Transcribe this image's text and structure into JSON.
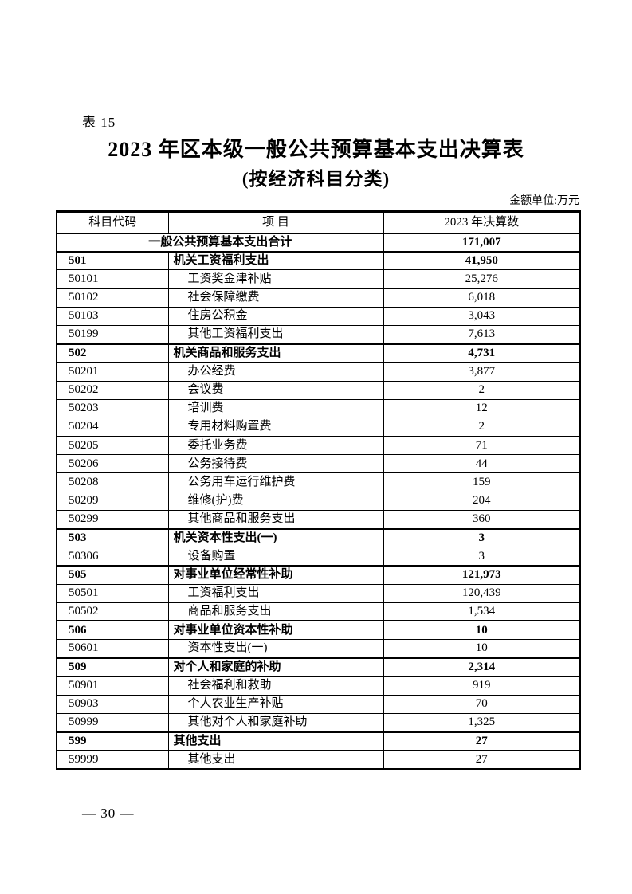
{
  "page": {
    "table_label": "表 15",
    "title": "2023 年区本级一般公共预算基本支出决算表",
    "subtitle": "(按经济科目分类)",
    "unit_note": "金额单位:万元",
    "page_number": "— 30 —"
  },
  "table": {
    "headers": [
      "科目代码",
      "项  目",
      "2023 年决算数"
    ],
    "total_row": {
      "label": "一般公共预算基本支出合计",
      "value": "171,007"
    },
    "rows": [
      {
        "code": "501",
        "item": "机关工资福利支出",
        "value": "41,950",
        "category": true
      },
      {
        "code": "50101",
        "item": "工资奖金津补贴",
        "value": "25,276",
        "category": false
      },
      {
        "code": "50102",
        "item": "社会保障缴费",
        "value": "6,018",
        "category": false
      },
      {
        "code": "50103",
        "item": "住房公积金",
        "value": "3,043",
        "category": false
      },
      {
        "code": "50199",
        "item": "其他工资福利支出",
        "value": "7,613",
        "category": false
      },
      {
        "code": "502",
        "item": "机关商品和服务支出",
        "value": "4,731",
        "category": true
      },
      {
        "code": "50201",
        "item": "办公经费",
        "value": "3,877",
        "category": false
      },
      {
        "code": "50202",
        "item": "会议费",
        "value": "2",
        "category": false
      },
      {
        "code": "50203",
        "item": "培训费",
        "value": "12",
        "category": false
      },
      {
        "code": "50204",
        "item": "专用材料购置费",
        "value": "2",
        "category": false
      },
      {
        "code": "50205",
        "item": "委托业务费",
        "value": "71",
        "category": false
      },
      {
        "code": "50206",
        "item": "公务接待费",
        "value": "44",
        "category": false
      },
      {
        "code": "50208",
        "item": "公务用车运行维护费",
        "value": "159",
        "category": false
      },
      {
        "code": "50209",
        "item": "维修(护)费",
        "value": "204",
        "category": false
      },
      {
        "code": "50299",
        "item": "其他商品和服务支出",
        "value": "360",
        "category": false
      },
      {
        "code": "503",
        "item": "机关资本性支出(一)",
        "value": "3",
        "category": true
      },
      {
        "code": "50306",
        "item": "设备购置",
        "value": "3",
        "category": false
      },
      {
        "code": "505",
        "item": "对事业单位经常性补助",
        "value": "121,973",
        "category": true
      },
      {
        "code": "50501",
        "item": "工资福利支出",
        "value": "120,439",
        "category": false
      },
      {
        "code": "50502",
        "item": "商品和服务支出",
        "value": "1,534",
        "category": false
      },
      {
        "code": "506",
        "item": "对事业单位资本性补助",
        "value": "10",
        "category": true
      },
      {
        "code": "50601",
        "item": "资本性支出(一)",
        "value": "10",
        "category": false
      },
      {
        "code": "509",
        "item": "对个人和家庭的补助",
        "value": "2,314",
        "category": true
      },
      {
        "code": "50901",
        "item": "社会福利和救助",
        "value": "919",
        "category": false
      },
      {
        "code": "50903",
        "item": "个人农业生产补贴",
        "value": "70",
        "category": false
      },
      {
        "code": "50999",
        "item": "其他对个人和家庭补助",
        "value": "1,325",
        "category": false
      },
      {
        "code": "599",
        "item": "其他支出",
        "value": "27",
        "category": true
      },
      {
        "code": "59999",
        "item": "其他支出",
        "value": "27",
        "category": false
      }
    ]
  }
}
